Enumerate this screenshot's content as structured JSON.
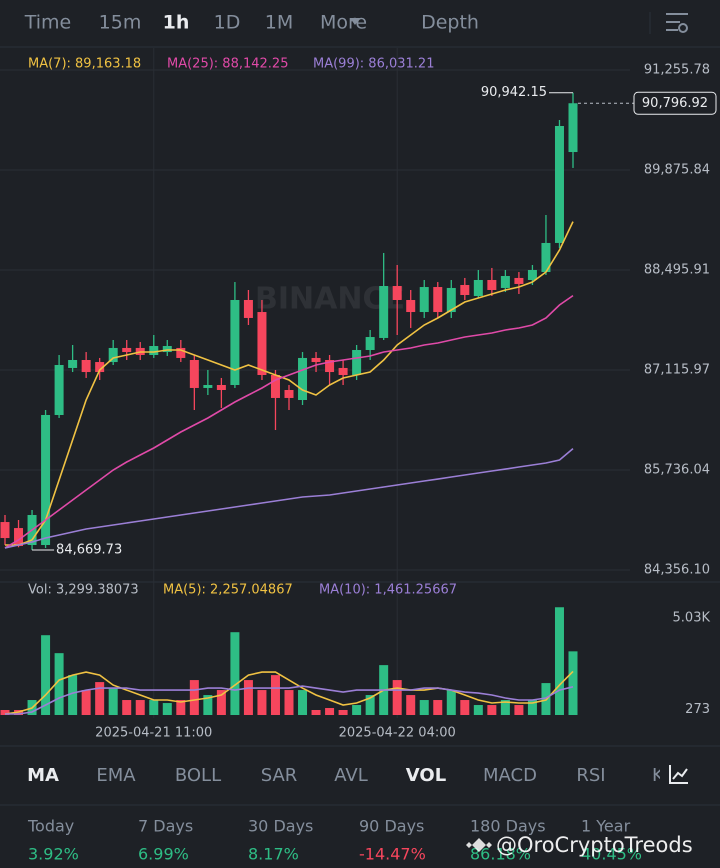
{
  "top_tabs": [
    "Time",
    "15m",
    "1h",
    "1D",
    "1M",
    "More",
    "Depth"
  ],
  "active_top_tab": "1h",
  "indicator_tabs": [
    "MA",
    "EMA",
    "BOLL",
    "SAR",
    "AVL",
    "VOL",
    "MACD",
    "RSI",
    "KI"
  ],
  "active_indicator_tabs": [
    "MA",
    "VOL"
  ],
  "stats": [
    {
      "period": "Today",
      "change": "3.92%"
    },
    {
      "period": "7 Days",
      "change": "6.99%"
    },
    {
      "period": "30 Days",
      "change": "8.17%"
    },
    {
      "period": "90 Days",
      "change": "-14.47%"
    },
    {
      "period": "180 Days",
      "change": "86.18%"
    },
    {
      "period": "1 Year",
      "change": "40.45%"
    }
  ],
  "watermark": "@OroCryptoTreods",
  "chart_data": {
    "type": "candlestick",
    "watermark": "BINANCE",
    "up_color": "#2ebd85",
    "down_color": "#f6465d",
    "ylim": [
      84356.1,
      91255.78
    ],
    "yticks": [
      {
        "value": 91255.78,
        "label": "91,255.78"
      },
      {
        "value": 89875.84,
        "label": "89,875.84"
      },
      {
        "value": 88495.91,
        "label": "88,495.91"
      },
      {
        "value": 87115.97,
        "label": "87,115.97"
      },
      {
        "value": 85736.04,
        "label": "85,736.04"
      },
      {
        "value": 84356.1,
        "label": "84,356.10"
      }
    ],
    "categories": [
      null,
      null,
      null,
      null,
      null,
      null,
      null,
      null,
      null,
      null,
      null,
      "2025-04-21 11:00",
      null,
      null,
      null,
      null,
      null,
      null,
      null,
      null,
      null,
      null,
      null,
      null,
      null,
      null,
      null,
      null,
      null,
      "2025-04-22 04:00",
      null,
      null,
      null,
      null,
      null,
      null,
      null,
      null,
      null,
      null,
      null,
      null,
      null
    ],
    "ohlc": [
      [
        85018,
        85115,
        84701,
        84797
      ],
      [
        84935,
        85046,
        84669.73,
        84687
      ],
      [
        84701,
        85184,
        84632,
        85115
      ],
      [
        84701,
        86564,
        84660,
        86495
      ],
      [
        86495,
        87323,
        86454,
        87185
      ],
      [
        87144,
        87461,
        87088,
        87254
      ],
      [
        87254,
        87364,
        87006,
        87088
      ],
      [
        87226,
        87282,
        86978,
        87088
      ],
      [
        87226,
        87530,
        87185,
        87420
      ],
      [
        87420,
        87530,
        87254,
        87364
      ],
      [
        87420,
        87502,
        87254,
        87323
      ],
      [
        87323,
        87599,
        87282,
        87447
      ],
      [
        87364,
        87530,
        87309,
        87447
      ],
      [
        87420,
        87530,
        87226,
        87282
      ],
      [
        87254,
        87323,
        86564,
        86868
      ],
      [
        86868,
        87116,
        86771,
        86909
      ],
      [
        86909,
        87006,
        86592,
        86840
      ],
      [
        86909,
        88330,
        86868,
        88082
      ],
      [
        88082,
        88220,
        87737,
        87834
      ],
      [
        87916,
        88082,
        86978,
        87047
      ],
      [
        87047,
        87116,
        86288,
        86730
      ],
      [
        86840,
        86909,
        86564,
        86730
      ],
      [
        86702,
        87364,
        86633,
        87282
      ],
      [
        87282,
        87364,
        87088,
        87226
      ],
      [
        87254,
        87323,
        86909,
        87088
      ],
      [
        87144,
        87254,
        86909,
        87047
      ],
      [
        87047,
        87461,
        86978,
        87392
      ],
      [
        87392,
        87668,
        87254,
        87571
      ],
      [
        87558,
        88731,
        87530,
        88275
      ],
      [
        88275,
        88565,
        87599,
        88082
      ],
      [
        88082,
        88220,
        87696,
        87916
      ],
      [
        87916,
        88358,
        87834,
        88261
      ],
      [
        88261,
        88330,
        87834,
        87916
      ],
      [
        87916,
        88358,
        87834,
        88248
      ],
      [
        88289,
        88386,
        88082,
        88151
      ],
      [
        88137,
        88496,
        88110,
        88358
      ],
      [
        88358,
        88524,
        88137,
        88220
      ],
      [
        88248,
        88496,
        88192,
        88413
      ],
      [
        88386,
        88468,
        88165,
        88303
      ],
      [
        88358,
        88565,
        88289,
        88496
      ],
      [
        88468,
        89255,
        88427,
        88869
      ],
      [
        88869,
        90566,
        88800,
        90483
      ],
      [
        90124,
        90942.15,
        89904,
        90796.92
      ]
    ],
    "high_label": "90,942.15",
    "low_label": "84,669.73",
    "last_label": "90,796.92",
    "series": [
      {
        "name": "MA(7)",
        "legend": "MA(7): 89,163.18",
        "color": "#f0c243",
        "values": [
          84701,
          84701,
          84770,
          85046,
          85598,
          86150,
          86702,
          87116,
          87282,
          87323,
          87364,
          87364,
          87392,
          87392,
          87323,
          87254,
          87185,
          87116,
          87185,
          87116,
          87047,
          86978,
          86840,
          86771,
          86909,
          87006,
          87047,
          87088,
          87254,
          87461,
          87599,
          87737,
          87834,
          87944,
          88055,
          88110,
          88165,
          88220,
          88261,
          88330,
          88468,
          88772,
          89163.18
        ]
      },
      {
        "name": "MA(25)",
        "legend": "MA(25): 88,142.25",
        "color": "#e04aa8",
        "values": [
          84660,
          84770,
          84908,
          85046,
          85184,
          85322,
          85460,
          85598,
          85736,
          85846,
          85943,
          86040,
          86150,
          86260,
          86357,
          86454,
          86564,
          86674,
          86771,
          86868,
          86978,
          87047,
          87116,
          87185,
          87226,
          87254,
          87282,
          87309,
          87364,
          87392,
          87420,
          87461,
          87488,
          87530,
          87571,
          87599,
          87626,
          87668,
          87696,
          87737,
          87834,
          88013,
          88142.25
        ]
      },
      {
        "name": "MA(99)",
        "legend": "MA(99): 86,031.21",
        "color": "#9b7fd6",
        "values": [
          84660,
          84701,
          84742,
          84797,
          84839,
          84880,
          84922,
          84949,
          84977,
          85004,
          85032,
          85060,
          85087,
          85115,
          85142,
          85170,
          85198,
          85225,
          85253,
          85280,
          85308,
          85336,
          85363,
          85377,
          85391,
          85418,
          85446,
          85474,
          85501,
          85529,
          85556,
          85584,
          85611,
          85639,
          85667,
          85694,
          85722,
          85749,
          85777,
          85805,
          85832,
          85874,
          86031.21
        ]
      }
    ],
    "volume": {
      "legend": "Vol: 3,299.38073",
      "vlim": [
        0,
        5960
      ],
      "vticks": [
        {
          "value": 5030,
          "label": "5.03K"
        },
        273
      ],
      "values": [
        259,
        259,
        776,
        4136,
        3205,
        2068,
        1293,
        1706,
        1396,
        776,
        776,
        776,
        620,
        776,
        1810,
        1034,
        1293,
        4291,
        1810,
        1293,
        2068,
        1293,
        1293,
        259,
        362,
        259,
        517,
        1034,
        2585,
        1810,
        1034,
        776,
        776,
        1293,
        776,
        517,
        517,
        776,
        517,
        776,
        1654,
        5584,
        3299.38073
      ],
      "series": [
        {
          "name": "MA(5)",
          "legend": "MA(5): 2,257.04867",
          "color": "#f0c243",
          "values": [
            52,
            155,
            362,
            1034,
            1810,
            2068,
            2223,
            2068,
            1551,
            1293,
            1034,
            776,
            776,
            672,
            776,
            879,
            1034,
            1551,
            2068,
            2223,
            2223,
            1810,
            1396,
            1034,
            776,
            517,
            620,
            879,
            1293,
            1396,
            1293,
            1293,
            1396,
            1293,
            1034,
            776,
            620,
            672,
            620,
            620,
            776,
            1551,
            2257.04867
          ]
        },
        {
          "name": "MA(10)",
          "legend": "MA(10): 1,461.25667",
          "color": "#9b7fd6",
          "values": [
            52,
            52,
            155,
            517,
            879,
            1137,
            1293,
            1396,
            1396,
            1396,
            1293,
            1293,
            1293,
            1293,
            1293,
            1396,
            1396,
            1293,
            1396,
            1396,
            1396,
            1396,
            1499,
            1396,
            1293,
            1189,
            1293,
            1293,
            1293,
            1293,
            1293,
            1396,
            1396,
            1293,
            1189,
            1137,
            1034,
            879,
            776,
            776,
            879,
            1293,
            1461.25667
          ]
        }
      ]
    }
  }
}
